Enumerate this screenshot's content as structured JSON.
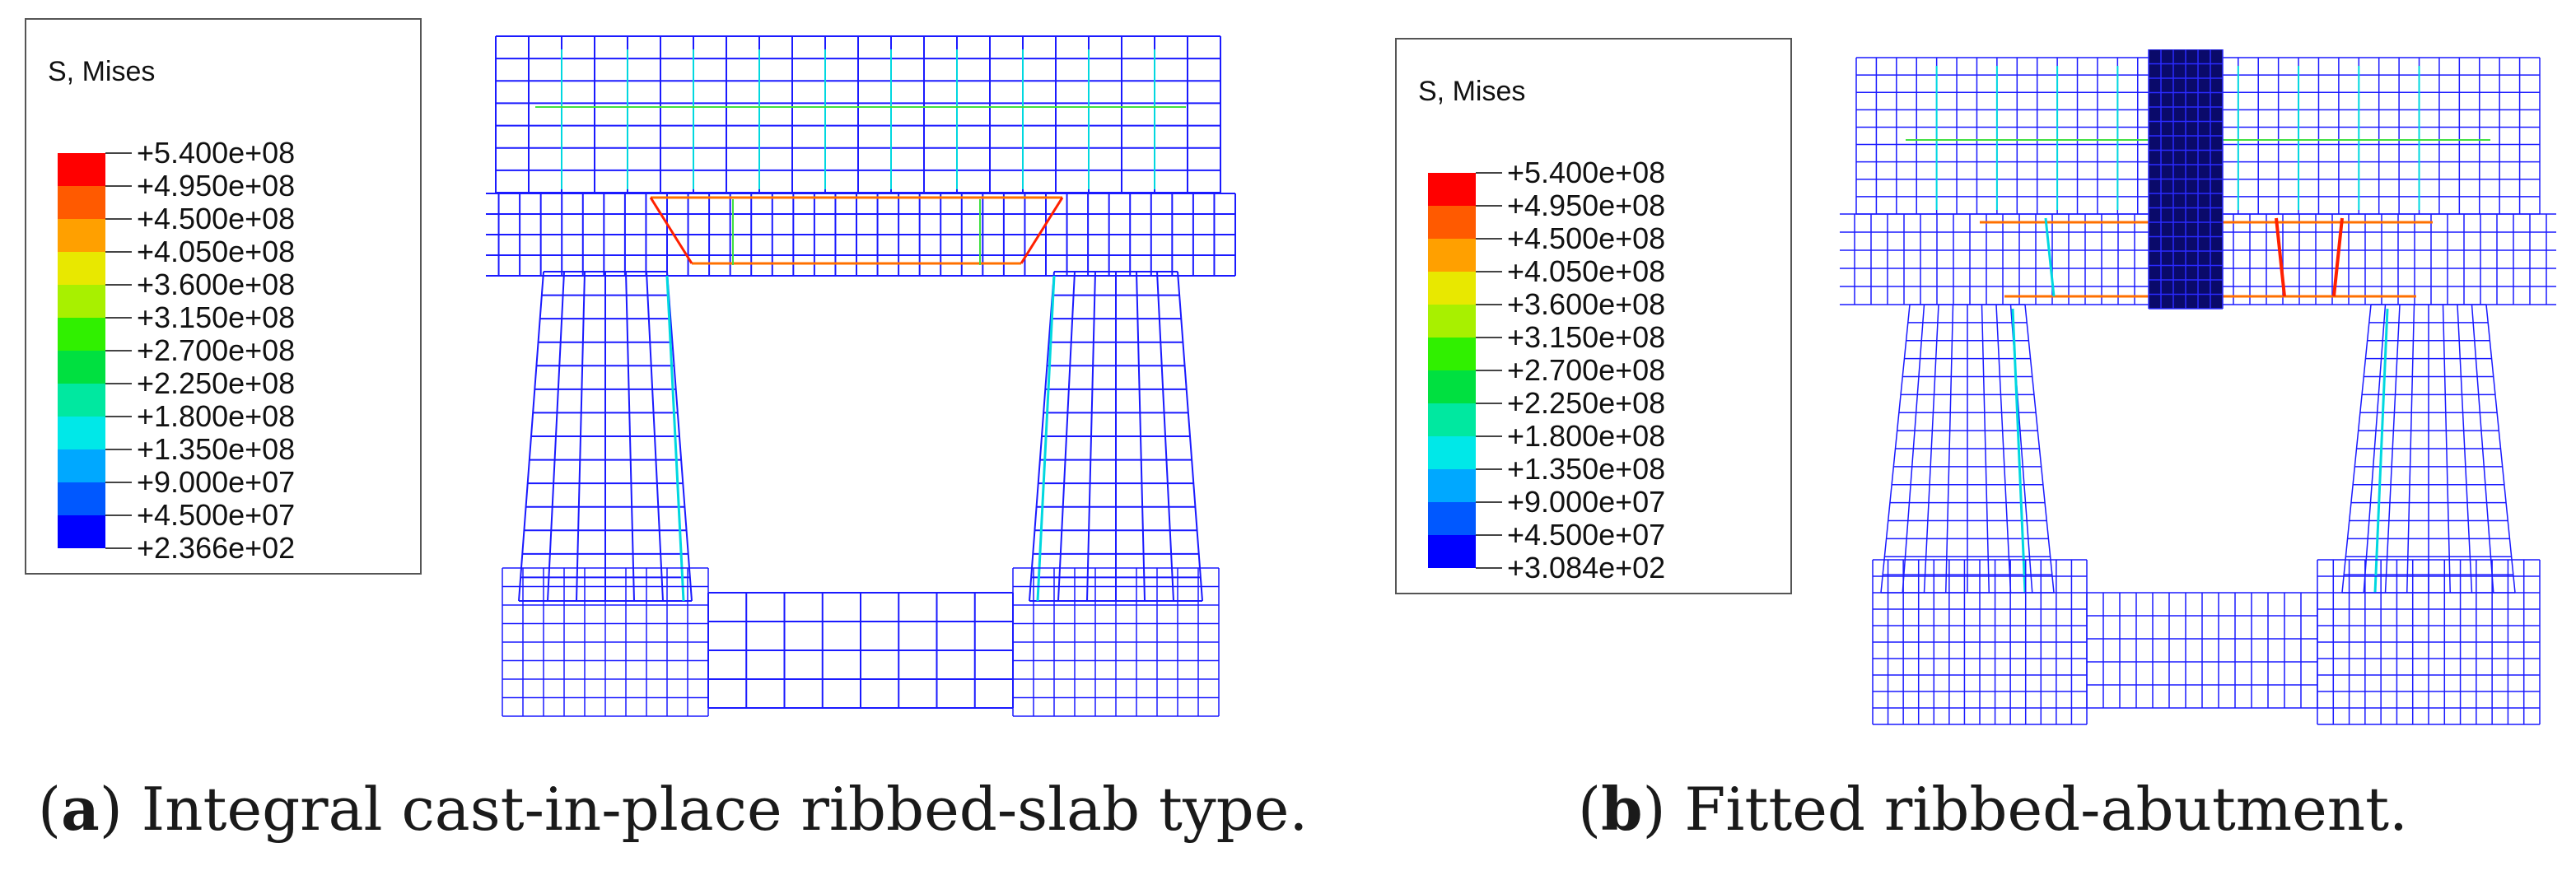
{
  "legend_colors": [
    "#ff0000",
    "#ff5a00",
    "#ffa000",
    "#e8e800",
    "#a8f000",
    "#30f000",
    "#00e040",
    "#00e8a0",
    "#00e8e8",
    "#00a8ff",
    "#0058ff",
    "#0000ff"
  ],
  "panels": [
    {
      "legend_title": "S, Mises",
      "legend_labels": [
        "+5.400e+08",
        "+4.950e+08",
        "+4.500e+08",
        "+4.050e+08",
        "+3.600e+08",
        "+3.150e+08",
        "+2.700e+08",
        "+2.250e+08",
        "+1.800e+08",
        "+1.350e+08",
        "+9.000e+07",
        "+4.500e+07",
        "+2.366e+02"
      ],
      "caption_letter": "a",
      "caption_text": "Integral cast-in-place ribbed-slab type."
    },
    {
      "legend_title": "S, Mises",
      "legend_labels": [
        "+5.400e+08",
        "+4.950e+08",
        "+4.500e+08",
        "+4.050e+08",
        "+3.600e+08",
        "+3.150e+08",
        "+2.700e+08",
        "+2.250e+08",
        "+1.800e+08",
        "+1.350e+08",
        "+9.000e+07",
        "+4.500e+07",
        "+3.084e+02"
      ],
      "caption_letter": "b",
      "caption_text": "Fitted ribbed-abutment."
    }
  ]
}
